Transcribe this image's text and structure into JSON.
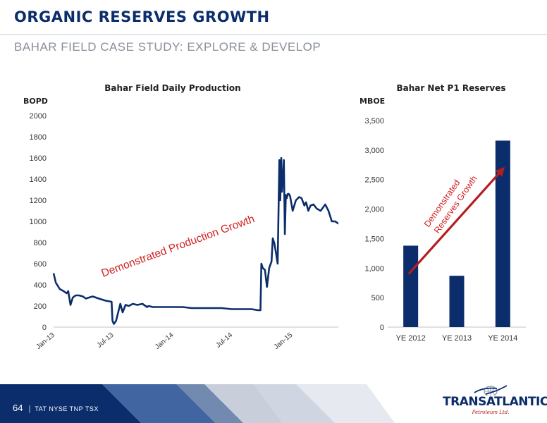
{
  "header": {
    "title": "ORGANIC RESERVES GROWTH",
    "subtitle": "BAHAR FIELD CASE STUDY: EXPLORE & DEVELOP"
  },
  "colors": {
    "navy": "#0b2d6b",
    "arrow_red": "#b41e1e",
    "annotation_red": "#d22020"
  },
  "chart_data": [
    {
      "type": "line",
      "title": "Bahar Field Daily Production",
      "ylabel": "BOPD",
      "xlabel": "",
      "ylim": [
        0,
        2000
      ],
      "yticks": [
        "0",
        "200",
        "400",
        "600",
        "800",
        "1000",
        "1200",
        "1400",
        "1600",
        "1800",
        "2000"
      ],
      "xticks": [
        "Jan-13",
        "Jul-13",
        "Jan-14",
        "Jul-14",
        "Jan-15"
      ],
      "grid": false,
      "annotation": "Demonstrated Production Growth",
      "series": [
        {
          "x": [
            "2013-01-01",
            "2013-01-08",
            "2013-01-20",
            "2013-02-01",
            "2013-02-10",
            "2013-02-15",
            "2013-02-22",
            "2013-03-01",
            "2013-03-10",
            "2013-03-20",
            "2013-04-01",
            "2013-04-10",
            "2013-04-20",
            "2013-05-01",
            "2013-05-20",
            "2013-06-10",
            "2013-06-28",
            "2013-07-01",
            "2013-07-05",
            "2013-07-12",
            "2013-07-20",
            "2013-07-25",
            "2013-08-01",
            "2013-08-10",
            "2013-08-20",
            "2013-09-01",
            "2013-09-15",
            "2013-10-01",
            "2013-10-15",
            "2013-10-20",
            "2013-11-01",
            "2013-12-01",
            "2014-01-01",
            "2014-02-01",
            "2014-03-01",
            "2014-04-01",
            "2014-05-01",
            "2014-06-01",
            "2014-07-01",
            "2014-08-01",
            "2014-09-01",
            "2014-09-20",
            "2014-09-28",
            "2014-10-01",
            "2014-10-05",
            "2014-10-12",
            "2014-10-18",
            "2014-10-25",
            "2014-11-01",
            "2014-11-05",
            "2014-11-10",
            "2014-11-15",
            "2014-11-20",
            "2014-11-25",
            "2014-11-28",
            "2014-12-01",
            "2014-12-03",
            "2014-12-06",
            "2014-12-09",
            "2014-12-12",
            "2014-12-15",
            "2014-12-18",
            "2014-12-21",
            "2014-12-24",
            "2014-12-28",
            "2015-01-05",
            "2015-01-15",
            "2015-01-25",
            "2015-02-01",
            "2015-02-10",
            "2015-02-15",
            "2015-02-22",
            "2015-03-01",
            "2015-03-10",
            "2015-03-20",
            "2015-04-01",
            "2015-04-15",
            "2015-04-25",
            "2015-05-05",
            "2015-05-15",
            "2015-05-25",
            "2015-06-05",
            "2015-06-15",
            "2015-06-25"
          ],
          "y": [
            510,
            420,
            360,
            340,
            320,
            340,
            210,
            280,
            300,
            300,
            290,
            270,
            280,
            290,
            270,
            250,
            240,
            60,
            30,
            60,
            160,
            220,
            140,
            210,
            200,
            220,
            210,
            220,
            190,
            200,
            190,
            190,
            190,
            190,
            180,
            180,
            180,
            180,
            170,
            170,
            170,
            160,
            160,
            600,
            560,
            540,
            380,
            560,
            620,
            840,
            790,
            700,
            600,
            1580,
            1200,
            1600,
            1280,
            1400,
            1580,
            880,
            1250,
            1220,
            1260,
            1260,
            1240,
            1100,
            1200,
            1230,
            1220,
            1150,
            1180,
            1100,
            1150,
            1160,
            1120,
            1100,
            1160,
            1100,
            1000,
            1000,
            980,
            960,
            960,
            910
          ]
        }
      ]
    },
    {
      "type": "bar",
      "title": "Bahar Net P1 Reserves",
      "ylabel": "MBOE",
      "xlabel": "",
      "ylim": [
        0,
        3500
      ],
      "yticks": [
        "0",
        "500",
        "1,000",
        "1,500",
        "2,000",
        "2,500",
        "3,000",
        "3,500"
      ],
      "grid": false,
      "annotation": [
        "Demonstrated",
        "Reserves Growth"
      ],
      "categories": [
        "YE 2012",
        "YE 2013",
        "YE 2014"
      ],
      "values": [
        1380,
        870,
        3160
      ]
    }
  ],
  "footer": {
    "page_number": "64",
    "separator": "|",
    "ticker": "TAT NYSE  TNP TSX"
  },
  "logo": {
    "wordmark": "TRANSATLANTIC",
    "tagline": "Petroleum Ltd."
  }
}
